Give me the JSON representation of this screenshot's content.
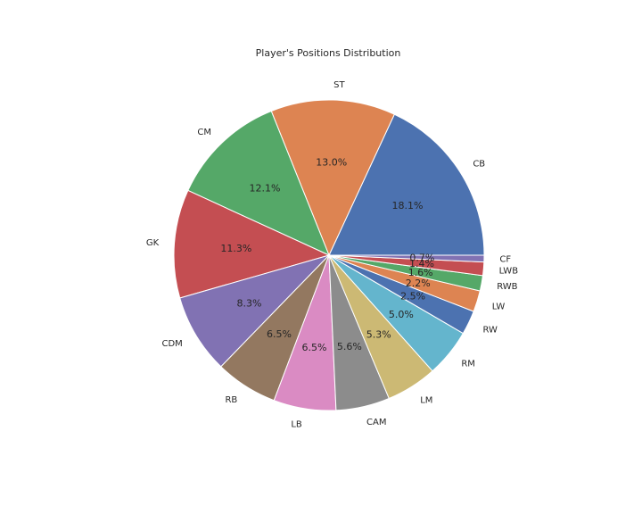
{
  "chart_data": {
    "type": "pie",
    "title": "Player's Positions Distribution",
    "start_angle_deg": 0,
    "direction": "counterclockwise",
    "categories": [
      "CB",
      "ST",
      "CM",
      "GK",
      "CDM",
      "RB",
      "LB",
      "CAM",
      "LM",
      "RM",
      "RW",
      "LW",
      "RWB",
      "LWB",
      "CF"
    ],
    "values": [
      18.1,
      13.0,
      12.1,
      11.3,
      8.3,
      6.5,
      6.5,
      5.6,
      5.3,
      5.0,
      2.5,
      2.2,
      1.6,
      1.4,
      0.7
    ],
    "labels_pct": [
      "18.1%",
      "13.0%",
      "12.1%",
      "11.3%",
      "8.3%",
      "6.5%",
      "6.5%",
      "5.6%",
      "5.3%",
      "5.0%",
      "2.5%",
      "2.2%",
      "1.6%",
      "1.4%",
      "0.7%"
    ],
    "colors": [
      "#4c72b0",
      "#dd8452",
      "#55a868",
      "#c44e52",
      "#8172b3",
      "#937860",
      "#da8bc3",
      "#8c8c8c",
      "#ccb974",
      "#64b5cd",
      "#4c72b0",
      "#dd8452",
      "#55a868",
      "#c44e52",
      "#8172b3"
    ]
  }
}
